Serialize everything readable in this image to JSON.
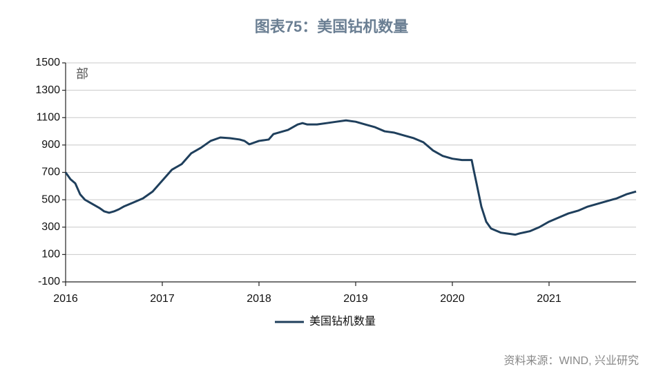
{
  "chart_data": {
    "type": "line",
    "title": "图表75：美国钻机数量",
    "y_unit": "部",
    "source": "资料来源：WIND, 兴业研究",
    "x": [
      2016.0,
      2016.05,
      2016.1,
      2016.15,
      2016.2,
      2016.3,
      2016.35,
      2016.4,
      2016.45,
      2016.5,
      2016.55,
      2016.6,
      2016.7,
      2016.8,
      2016.9,
      2017.0,
      2017.1,
      2017.2,
      2017.3,
      2017.4,
      2017.5,
      2017.6,
      2017.7,
      2017.8,
      2017.85,
      2017.9,
      2018.0,
      2018.1,
      2018.15,
      2018.3,
      2018.4,
      2018.45,
      2018.5,
      2018.6,
      2018.7,
      2018.8,
      2018.9,
      2019.0,
      2019.1,
      2019.2,
      2019.3,
      2019.4,
      2019.5,
      2019.6,
      2019.7,
      2019.8,
      2019.9,
      2020.0,
      2020.1,
      2020.2,
      2020.22,
      2020.25,
      2020.3,
      2020.35,
      2020.4,
      2020.5,
      2020.6,
      2020.65,
      2020.7,
      2020.8,
      2020.9,
      2021.0,
      2021.1,
      2021.2,
      2021.3,
      2021.4,
      2021.5,
      2021.6,
      2021.7,
      2021.8,
      2021.9
    ],
    "series": [
      {
        "name": "美国钻机数量",
        "color": "#1f3f5c",
        "values": [
          700,
          650,
          620,
          540,
          500,
          460,
          440,
          415,
          405,
          415,
          430,
          450,
          480,
          510,
          560,
          640,
          720,
          760,
          840,
          880,
          930,
          955,
          950,
          940,
          930,
          905,
          930,
          940,
          980,
          1010,
          1050,
          1060,
          1050,
          1050,
          1060,
          1070,
          1080,
          1070,
          1050,
          1030,
          1000,
          990,
          970,
          950,
          920,
          860,
          820,
          800,
          790,
          790,
          720,
          620,
          450,
          340,
          290,
          260,
          250,
          245,
          255,
          270,
          300,
          340,
          370,
          400,
          420,
          450,
          470,
          490,
          510,
          540,
          560
        ]
      }
    ],
    "xlim": [
      2016,
      2021.9
    ],
    "xticks": [
      2016,
      2017,
      2018,
      2019,
      2020,
      2021
    ],
    "ylim": [
      -100,
      1500
    ],
    "yticks": [
      -100,
      100,
      300,
      500,
      700,
      900,
      1100,
      1300,
      1500
    ],
    "grid": true
  }
}
